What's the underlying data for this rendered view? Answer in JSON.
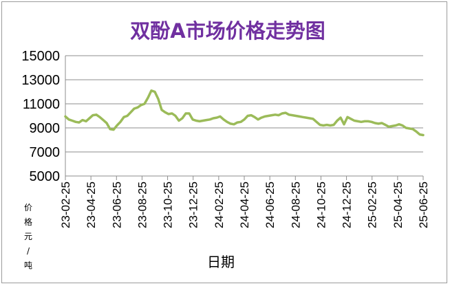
{
  "chart_data": {
    "type": "line",
    "title": "双酚A市场价格走势图",
    "xlabel": "日期",
    "ylabel": "价格元/吨",
    "ylabel_chars": [
      "价",
      "格",
      "元",
      "/",
      "吨"
    ],
    "ylim": [
      5000,
      15000
    ],
    "yticks": [
      15000,
      13000,
      11000,
      9000,
      7000,
      5000
    ],
    "xticks": [
      "23-02-25",
      "23-04-25",
      "23-06-25",
      "23-08-25",
      "23-10-25",
      "23-12-25",
      "24-02-25",
      "24-04-25",
      "24-06-25",
      "24-08-25",
      "24-10-25",
      "24-12-25",
      "25-02-25",
      "25-04-25",
      "25-06-25"
    ],
    "grid": true,
    "line_color": "#9bbb59",
    "series": [
      {
        "values": [
          9950,
          9700,
          9600,
          9500,
          9450,
          9650,
          9550,
          9800,
          10050,
          10100,
          9900,
          9650,
          9400,
          8900,
          8850,
          9200,
          9500,
          9900,
          10000,
          10300,
          10600,
          10700,
          10900,
          11000,
          11500,
          12100,
          12000,
          11400,
          10500,
          10300,
          10150,
          10200,
          10000,
          9600,
          9800,
          10200,
          10200,
          9700,
          9600,
          9550,
          9600,
          9650,
          9700,
          9800,
          9850,
          9950,
          9700,
          9500,
          9350,
          9300,
          9450,
          9500,
          9700,
          10000,
          10050,
          9900,
          9700,
          9850,
          9950,
          10000,
          10050,
          10100,
          10050,
          10200,
          10250,
          10100,
          10050,
          10000,
          9950,
          9900,
          9850,
          9800,
          9750,
          9500,
          9250,
          9200,
          9250,
          9200,
          9250,
          9600,
          9850,
          9300,
          9900,
          9750,
          9600,
          9550,
          9500,
          9550,
          9550,
          9500,
          9400,
          9350,
          9400,
          9250,
          9100,
          9150,
          9200,
          9300,
          9200,
          9000,
          8950,
          8900,
          8700,
          8450,
          8400
        ]
      }
    ]
  }
}
